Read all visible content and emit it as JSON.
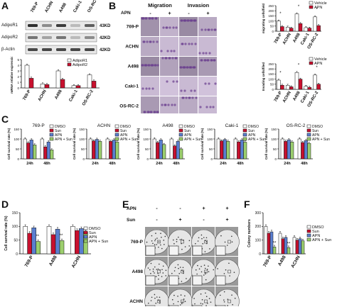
{
  "panels": {
    "a": "A",
    "b": "B",
    "c": "C",
    "d": "D",
    "e": "E",
    "f": "F"
  },
  "panel_a": {
    "lanes": [
      "769-P",
      "ACHN",
      "A498",
      "Caki-1",
      "OS-RC-2"
    ],
    "blots": [
      {
        "name": "AdipoR1",
        "kd": "43KD"
      },
      {
        "name": "AdipoR2",
        "kd": "42KD"
      },
      {
        "name": "β-Actin",
        "kd": "42KD"
      }
    ]
  },
  "panel_b": {
    "headers": [
      "Migration",
      "Invasion"
    ],
    "apn_label": "APN",
    "signs": [
      "-",
      "+",
      "-",
      "+"
    ],
    "rows": [
      "769-P",
      "ACHN",
      "A498",
      "Caki-1",
      "OS-RC-2"
    ]
  },
  "panel_e": {
    "rows_top": [
      "APN",
      "Sun"
    ],
    "apn_signs": [
      "-",
      "-",
      "+",
      "+"
    ],
    "sun_signs": [
      "-",
      "+",
      "-",
      "+"
    ],
    "rows": [
      "769-P",
      "A498",
      "ACHN"
    ]
  },
  "chart_data": [
    {
      "id": "A-bottom",
      "type": "bar",
      "ylabel": "mRNA relative expression",
      "categories": [
        "769-P",
        "ACHN",
        "A498",
        "Caki-1",
        "OS-RC-2"
      ],
      "series": [
        {
          "name": "AdipoR1",
          "color": "#ffffff",
          "values": [
            4.0,
            0.7,
            3.0,
            0.4,
            2.3
          ]
        },
        {
          "name": "AdipoR2",
          "color": "#c8102e",
          "values": [
            1.7,
            0.6,
            1.5,
            0.4,
            1.2
          ]
        }
      ],
      "yticks": [
        0,
        1,
        2,
        3,
        4,
        5
      ],
      "ylim": [
        0,
        5
      ],
      "legend": "top-right"
    },
    {
      "id": "B-top",
      "type": "bar",
      "ylabel": "migrating cells/field",
      "categories": [
        "769-P",
        "ACHN",
        "A498",
        "Caki-1",
        "OS-RC-2"
      ],
      "series": [
        {
          "name": "Vehicle",
          "color": "#ffffff",
          "values": [
            100,
            40,
            170,
            35,
            140
          ]
        },
        {
          "name": "APN",
          "color": "#c8102e",
          "values": [
            45,
            30,
            75,
            30,
            55
          ]
        }
      ],
      "yticks": [
        0,
        50,
        100,
        150,
        200,
        250
      ],
      "ylim": [
        0,
        250
      ],
      "legend": "top-right",
      "annotations": [
        "*",
        "*",
        "*"
      ]
    },
    {
      "id": "B-bottom",
      "type": "bar",
      "ylabel": "Invading cells/filed",
      "categories": [
        "769-P",
        "ACHN",
        "A498",
        "Caki-1",
        "OS-RC-2"
      ],
      "series": [
        {
          "name": "Vehicle",
          "color": "#ffffff",
          "values": [
            90,
            40,
            165,
            30,
            140
          ]
        },
        {
          "name": "APN",
          "color": "#c8102e",
          "values": [
            40,
            25,
            100,
            20,
            50
          ]
        }
      ],
      "yticks": [
        0,
        50,
        100,
        150,
        200,
        250
      ],
      "ylim": [
        0,
        250
      ],
      "legend": "top-right",
      "annotations": [
        "*",
        "*",
        "*"
      ]
    },
    {
      "id": "C-769-P",
      "type": "bar",
      "title": "769-P",
      "ylabel": "Cell survival rate (%)",
      "categories": [
        "24h",
        "48h"
      ],
      "series": [
        {
          "name": "DMSO",
          "color": "#ffffff",
          "values": [
            100,
            100
          ]
        },
        {
          "name": "Sun",
          "color": "#c8102e",
          "values": [
            80,
            60
          ]
        },
        {
          "name": "APN",
          "color": "#5a7fd0",
          "values": [
            95,
            85
          ]
        },
        {
          "name": "APN + Sun",
          "color": "#9ccf6e",
          "values": [
            70,
            45
          ]
        }
      ],
      "yticks": [
        0,
        50,
        100,
        150
      ],
      "ylim": [
        0,
        150
      ],
      "legend": "top-right"
    },
    {
      "id": "C-ACHN",
      "type": "bar",
      "title": "ACHN",
      "ylabel": "Cell survival rate (%)",
      "categories": [
        "24h",
        "48h"
      ],
      "series": [
        {
          "name": "DMSO",
          "color": "#ffffff",
          "values": [
            100,
            100
          ]
        },
        {
          "name": "Sun",
          "color": "#c8102e",
          "values": [
            90,
            88
          ]
        },
        {
          "name": "APN",
          "color": "#5a7fd0",
          "values": [
            98,
            95
          ]
        },
        {
          "name": "APN + Sun",
          "color": "#9ccf6e",
          "values": [
            88,
            85
          ]
        }
      ],
      "yticks": [
        0,
        50,
        100,
        150
      ],
      "ylim": [
        0,
        150
      ],
      "legend": "top-right"
    },
    {
      "id": "C-A498",
      "type": "bar",
      "title": "A498",
      "ylabel": "Cell survival rate (%)",
      "categories": [
        "24h",
        "48h"
      ],
      "series": [
        {
          "name": "DMSO",
          "color": "#ffffff",
          "values": [
            100,
            100
          ]
        },
        {
          "name": "Sun",
          "color": "#c8102e",
          "values": [
            82,
            65
          ]
        },
        {
          "name": "APN",
          "color": "#5a7fd0",
          "values": [
            95,
            88
          ]
        },
        {
          "name": "APN + Sun",
          "color": "#9ccf6e",
          "values": [
            72,
            50
          ]
        }
      ],
      "yticks": [
        0,
        50,
        100,
        150
      ],
      "ylim": [
        0,
        150
      ],
      "legend": "top-right"
    },
    {
      "id": "C-Caki-1",
      "type": "bar",
      "title": "Caki-1",
      "ylabel": "Cell survival rate (%)",
      "categories": [
        "24h",
        "48h"
      ],
      "series": [
        {
          "name": "DMSO",
          "color": "#ffffff",
          "values": [
            100,
            100
          ]
        },
        {
          "name": "Sun",
          "color": "#c8102e",
          "values": [
            90,
            85
          ]
        },
        {
          "name": "APN",
          "color": "#5a7fd0",
          "values": [
            97,
            95
          ]
        },
        {
          "name": "APN + Sun",
          "color": "#9ccf6e",
          "values": [
            88,
            84
          ]
        }
      ],
      "yticks": [
        0,
        50,
        100,
        150
      ],
      "ylim": [
        0,
        150
      ],
      "legend": "top-right"
    },
    {
      "id": "C-OS-RC-2",
      "type": "bar",
      "title": "OS-RC-2",
      "ylabel": "Cell survival rate (%)",
      "categories": [
        "24h",
        "48h"
      ],
      "series": [
        {
          "name": "DMSO",
          "color": "#ffffff",
          "values": [
            100,
            100
          ]
        },
        {
          "name": "Sun",
          "color": "#c8102e",
          "values": [
            88,
            82
          ]
        },
        {
          "name": "APN",
          "color": "#5a7fd0",
          "values": [
            96,
            92
          ]
        },
        {
          "name": "APN + Sun",
          "color": "#9ccf6e",
          "values": [
            85,
            78
          ]
        }
      ],
      "yticks": [
        0,
        50,
        100,
        150
      ],
      "ylim": [
        0,
        150
      ],
      "legend": "top-right"
    },
    {
      "id": "D",
      "type": "bar",
      "ylabel": "Cell survival rate (%)",
      "categories": [
        "769-P",
        "A498",
        "ACHN"
      ],
      "series": [
        {
          "name": "DMSO",
          "color": "#ffffff",
          "values": [
            100,
            100,
            100
          ]
        },
        {
          "name": "Sun",
          "color": "#c8102e",
          "values": [
            75,
            70,
            85
          ]
        },
        {
          "name": "APN",
          "color": "#5a7fd0",
          "values": [
            95,
            90,
            92
          ]
        },
        {
          "name": "APN + Sun",
          "color": "#9ccf6e",
          "values": [
            45,
            48,
            80
          ]
        }
      ],
      "yticks": [
        0,
        50,
        100,
        150
      ],
      "ylim": [
        0,
        150
      ],
      "legend": "top-right",
      "annotations": [
        "**",
        "**"
      ]
    },
    {
      "id": "F",
      "type": "bar",
      "ylabel": "Colony numbers",
      "categories": [
        "769-P",
        "A498",
        "ACHN"
      ],
      "series": [
        {
          "name": "DMSO",
          "color": "#ffffff",
          "values": [
            200,
            150,
            120
          ]
        },
        {
          "name": "Sun",
          "color": "#c8102e",
          "values": [
            150,
            110,
            100
          ]
        },
        {
          "name": "APN",
          "color": "#5a7fd0",
          "values": [
            160,
            120,
            110
          ]
        },
        {
          "name": "APN + Sun",
          "color": "#9ccf6e",
          "values": [
            50,
            45,
            95
          ]
        }
      ],
      "yticks": [
        0,
        100,
        200,
        300
      ],
      "ylim": [
        0,
        300
      ],
      "legend": "top-right",
      "annotations": [
        "**",
        "**"
      ]
    }
  ]
}
